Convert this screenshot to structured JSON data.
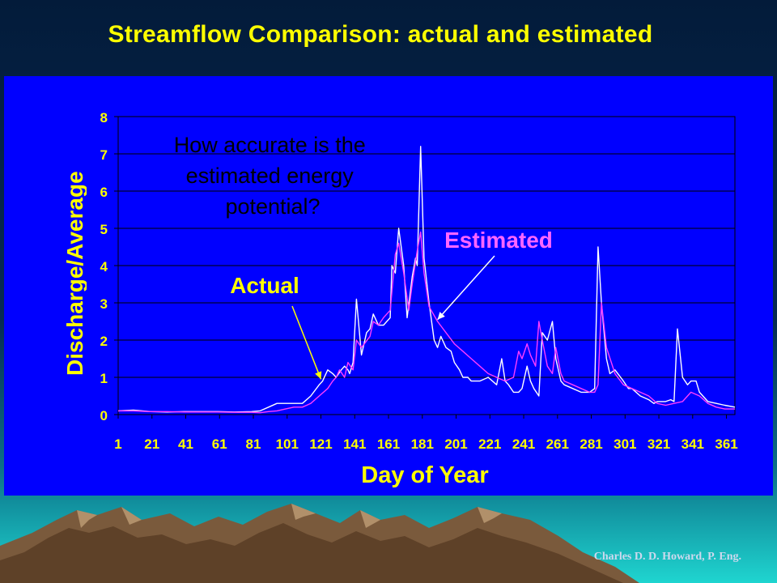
{
  "slide": {
    "title": "Streamflow Comparison: actual and estimated",
    "credit": "Charles D. D. Howard, P. Eng.",
    "colors": {
      "title": "#ffff00",
      "panel": "#0000ff",
      "actual": "#ffffff",
      "estimated": "#ff3cff",
      "axis_text": "#ffff00"
    }
  },
  "chart_data": {
    "type": "line",
    "title": "",
    "xlabel": "Day of Year",
    "ylabel": "Discharge/Average",
    "xlim": [
      1,
      366
    ],
    "ylim": [
      0,
      8
    ],
    "yticks": [
      0,
      1,
      2,
      3,
      4,
      5,
      6,
      7,
      8
    ],
    "xtick_labels": [
      "1",
      "21",
      "41",
      "61",
      "81",
      "101",
      "121",
      "141",
      "161",
      "181",
      "201",
      "221",
      "241",
      "261",
      "281",
      "301",
      "321",
      "341",
      "361"
    ],
    "grid": true,
    "annotations": [
      {
        "text": "How accurate is the estimated energy potential?",
        "color": "#000000"
      },
      {
        "text": "Estimated",
        "color": "#ff66ff",
        "points_to": [
          190,
          2.55
        ]
      },
      {
        "text": "Actual",
        "color": "#ffff00",
        "points_to": [
          121,
          0.95
        ]
      }
    ],
    "series": [
      {
        "color": "#ffffff",
        "x": [
          1,
          10,
          20,
          30,
          40,
          50,
          60,
          70,
          80,
          85,
          90,
          95,
          100,
          110,
          115,
          120,
          122,
          125,
          128,
          130,
          133,
          135,
          137,
          138,
          140,
          142,
          145,
          148,
          150,
          152,
          155,
          158,
          160,
          162,
          163,
          165,
          167,
          170,
          172,
          175,
          177,
          178,
          180,
          182,
          185,
          188,
          190,
          192,
          195,
          198,
          200,
          203,
          205,
          208,
          210,
          215,
          220,
          225,
          228,
          230,
          232,
          235,
          238,
          240,
          243,
          245,
          247,
          250,
          252,
          255,
          258,
          260,
          263,
          265,
          270,
          275,
          280,
          283,
          285,
          287,
          290,
          292,
          295,
          300,
          303,
          305,
          310,
          315,
          318,
          320,
          325,
          328,
          330,
          332,
          335,
          338,
          340,
          343,
          345,
          350,
          355,
          360,
          366
        ],
        "y": [
          0.1,
          0.12,
          0.08,
          0.07,
          0.08,
          0.08,
          0.08,
          0.07,
          0.08,
          0.1,
          0.2,
          0.3,
          0.3,
          0.3,
          0.5,
          0.8,
          0.9,
          1.2,
          1.1,
          1.0,
          1.2,
          1.3,
          1.2,
          1.1,
          1.4,
          3.1,
          1.6,
          2.2,
          2.3,
          2.7,
          2.4,
          2.4,
          2.5,
          2.6,
          4.0,
          3.8,
          5.0,
          4.0,
          2.6,
          3.7,
          4.2,
          4.0,
          7.2,
          4.2,
          3.0,
          2.0,
          1.8,
          2.1,
          1.8,
          1.7,
          1.4,
          1.2,
          1.0,
          1.0,
          0.9,
          0.9,
          1.0,
          0.8,
          1.5,
          0.9,
          0.8,
          0.6,
          0.6,
          0.7,
          1.3,
          0.9,
          0.7,
          0.5,
          2.2,
          2.0,
          2.5,
          1.5,
          0.9,
          0.8,
          0.7,
          0.6,
          0.6,
          0.7,
          4.5,
          3.0,
          1.5,
          1.1,
          1.2,
          0.9,
          0.7,
          0.7,
          0.5,
          0.4,
          0.3,
          0.35,
          0.35,
          0.4,
          0.35,
          2.3,
          1.0,
          0.8,
          0.9,
          0.9,
          0.6,
          0.35,
          0.3,
          0.25,
          0.2
        ]
      },
      {
        "color": "#ff3cff",
        "x": [
          1,
          10,
          20,
          30,
          40,
          50,
          60,
          70,
          80,
          85,
          90,
          95,
          100,
          105,
          110,
          115,
          120,
          125,
          128,
          130,
          132,
          135,
          137,
          140,
          142,
          145,
          150,
          152,
          155,
          158,
          160,
          162,
          165,
          167,
          170,
          173,
          175,
          178,
          180,
          182,
          185,
          190,
          195,
          200,
          205,
          210,
          215,
          220,
          225,
          230,
          235,
          238,
          240,
          243,
          245,
          248,
          250,
          252,
          255,
          258,
          260,
          263,
          265,
          270,
          275,
          280,
          283,
          285,
          287,
          290,
          295,
          300,
          305,
          310,
          315,
          320,
          325,
          330,
          335,
          340,
          345,
          350,
          355,
          360,
          366
        ],
        "y": [
          0.1,
          0.1,
          0.08,
          0.08,
          0.07,
          0.07,
          0.07,
          0.06,
          0.06,
          0.05,
          0.08,
          0.1,
          0.15,
          0.2,
          0.2,
          0.3,
          0.5,
          0.7,
          0.9,
          1.0,
          1.2,
          1.0,
          1.4,
          1.2,
          2.0,
          1.8,
          2.1,
          2.5,
          2.4,
          2.6,
          2.7,
          2.8,
          4.3,
          4.6,
          3.8,
          2.8,
          3.5,
          4.4,
          4.9,
          3.8,
          2.9,
          2.5,
          2.2,
          1.9,
          1.7,
          1.5,
          1.3,
          1.1,
          1.0,
          0.9,
          1.0,
          1.7,
          1.5,
          1.9,
          1.6,
          1.3,
          2.5,
          2.0,
          1.3,
          1.1,
          1.8,
          1.1,
          0.9,
          0.8,
          0.7,
          0.6,
          0.6,
          0.8,
          3.0,
          1.8,
          1.1,
          0.8,
          0.7,
          0.6,
          0.5,
          0.3,
          0.25,
          0.3,
          0.35,
          0.6,
          0.5,
          0.3,
          0.2,
          0.15,
          0.15
        ]
      }
    ]
  }
}
